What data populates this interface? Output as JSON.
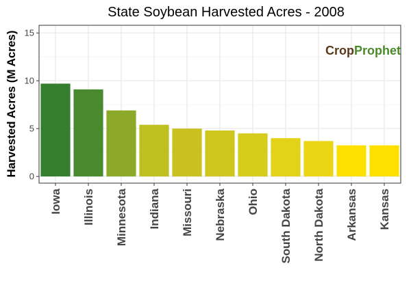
{
  "chart_data": {
    "type": "bar",
    "title": "State Soybean Harvested Acres - 2008",
    "xlabel": "",
    "ylabel": "Harvested Acres (M Acres)",
    "categories": [
      "Iowa",
      "Illinois",
      "Minnesota",
      "Indiana",
      "Missouri",
      "Nebraska",
      "Ohio",
      "South Dakota",
      "North Dakota",
      "Arkansas",
      "Kansas"
    ],
    "values": [
      9.7,
      9.1,
      6.9,
      5.4,
      5.0,
      4.8,
      4.5,
      4.0,
      3.7,
      3.25,
      3.25
    ],
    "bar_colors": [
      "#357e2e",
      "#4a8a2e",
      "#8da92a",
      "#c0bf20",
      "#c8c11f",
      "#cec61e",
      "#d6cc1c",
      "#e2d218",
      "#ead616",
      "#fde000",
      "#fde000"
    ],
    "ylim": [
      -0.7,
      15.8
    ],
    "yticks": [
      0,
      5,
      10,
      15
    ],
    "grid": true,
    "legend": "none"
  },
  "watermark": {
    "part1": "Crop",
    "part2": "Prophet",
    "color1": "#5a3a1a",
    "color2": "#4a8a2a"
  }
}
